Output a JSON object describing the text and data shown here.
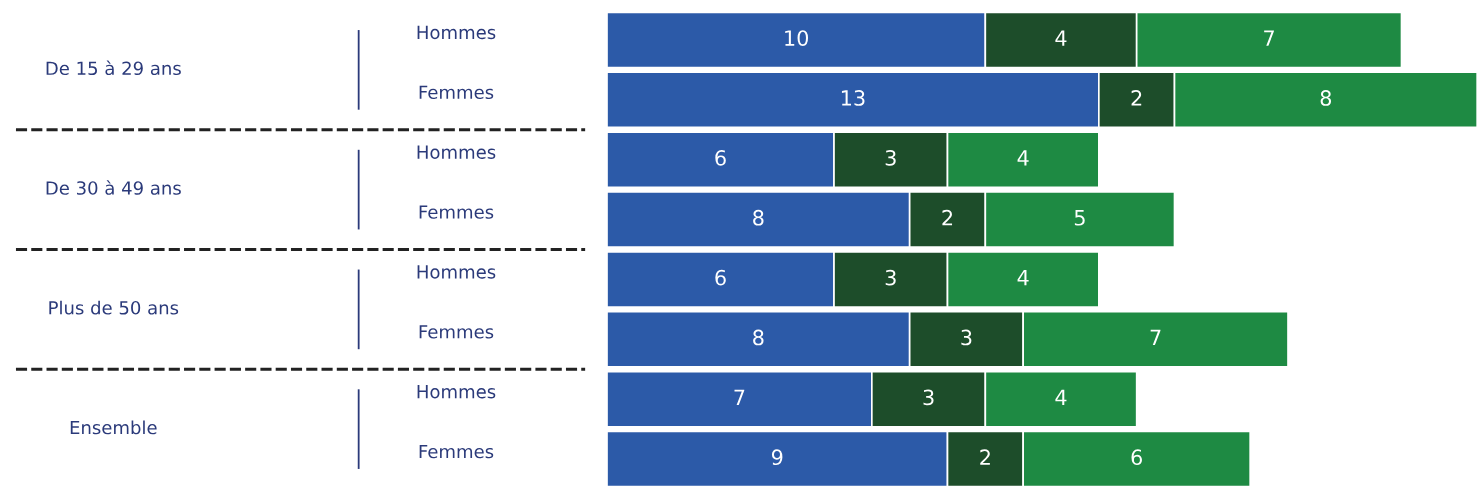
{
  "chart_data": {
    "type": "bar",
    "orientation": "horizontal",
    "stacked": true,
    "data_labels": true,
    "categories": [
      "Hommes",
      "Femmes",
      "Hommes",
      "Femmes",
      "Hommes",
      "Femmes",
      "Hommes",
      "Femmes"
    ],
    "annotations": [
      "De 15 à 29 ans",
      "De 30 à 49 ans",
      "Plus de 50 ans",
      "Ensemble"
    ],
    "series": [
      {
        "color": "#2c5aa8",
        "values": [
          10,
          13,
          6,
          8,
          6,
          8,
          7,
          9
        ]
      },
      {
        "color": "#1d4d2a",
        "values": [
          4,
          2,
          3,
          2,
          3,
          3,
          3,
          2
        ]
      },
      {
        "color": "#1e8a43",
        "values": [
          7,
          8,
          4,
          5,
          4,
          7,
          4,
          6
        ]
      }
    ]
  }
}
